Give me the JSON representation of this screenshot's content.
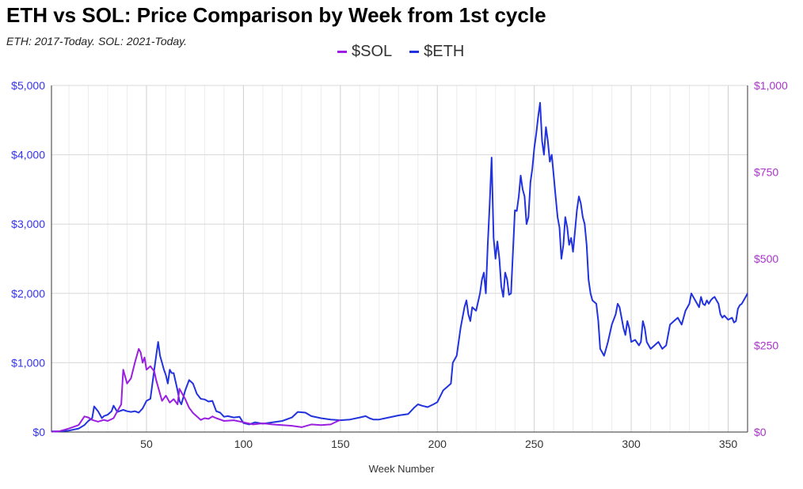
{
  "chart_data": {
    "type": "line",
    "title": "ETH vs SOL: Price Comparison by Week from 1st cycle",
    "subtitle": "ETH: 2017-Today. SOL: 2021-Today.",
    "xlabel": "Week Number",
    "xlim": [
      1,
      360
    ],
    "x_ticks": [
      50,
      100,
      150,
      200,
      250,
      300,
      350
    ],
    "y_left": {
      "lim": [
        0,
        5000
      ],
      "ticks": [
        "$0",
        "$1,000",
        "$2,000",
        "$3,000",
        "$4,000",
        "$5,000"
      ],
      "tick_values": [
        0,
        1000,
        2000,
        3000,
        4000,
        5000
      ],
      "color": "#3333ee"
    },
    "y_right": {
      "lim": [
        0,
        1000
      ],
      "ticks": [
        "$0",
        "$250",
        "$500",
        "$750",
        "$1,000"
      ],
      "tick_values": [
        0,
        250,
        500,
        750,
        1000
      ],
      "color": "#aa33cc"
    },
    "legend": "top-center",
    "grid": true,
    "series": [
      {
        "name": "$SOL",
        "axis": "right",
        "color": "#9b1fe0",
        "points": [
          [
            1,
            1
          ],
          [
            5,
            2
          ],
          [
            10,
            10
          ],
          [
            15,
            20
          ],
          [
            18,
            45
          ],
          [
            20,
            42
          ],
          [
            22,
            35
          ],
          [
            25,
            30
          ],
          [
            28,
            35
          ],
          [
            30,
            32
          ],
          [
            33,
            40
          ],
          [
            35,
            60
          ],
          [
            37,
            80
          ],
          [
            38,
            180
          ],
          [
            40,
            140
          ],
          [
            42,
            155
          ],
          [
            44,
            200
          ],
          [
            46,
            240
          ],
          [
            47,
            230
          ],
          [
            48,
            200
          ],
          [
            49,
            215
          ],
          [
            50,
            180
          ],
          [
            52,
            190
          ],
          [
            54,
            175
          ],
          [
            55,
            150
          ],
          [
            57,
            110
          ],
          [
            58,
            90
          ],
          [
            60,
            105
          ],
          [
            62,
            85
          ],
          [
            64,
            95
          ],
          [
            66,
            80
          ],
          [
            67,
            125
          ],
          [
            68,
            115
          ],
          [
            70,
            95
          ],
          [
            72,
            70
          ],
          [
            74,
            55
          ],
          [
            76,
            45
          ],
          [
            78,
            35
          ],
          [
            80,
            40
          ],
          [
            82,
            38
          ],
          [
            84,
            45
          ],
          [
            86,
            40
          ],
          [
            88,
            36
          ],
          [
            90,
            32
          ],
          [
            95,
            34
          ],
          [
            100,
            28
          ],
          [
            105,
            22
          ],
          [
            110,
            25
          ],
          [
            115,
            22
          ],
          [
            120,
            20
          ],
          [
            125,
            18
          ],
          [
            130,
            14
          ],
          [
            135,
            22
          ],
          [
            140,
            20
          ],
          [
            145,
            22
          ],
          [
            148,
            30
          ],
          [
            150,
            35
          ]
        ]
      },
      {
        "name": "$ETH",
        "axis": "left",
        "color": "#2233dd",
        "points": [
          [
            1,
            10
          ],
          [
            5,
            10
          ],
          [
            10,
            20
          ],
          [
            15,
            50
          ],
          [
            18,
            100
          ],
          [
            20,
            160
          ],
          [
            22,
            200
          ],
          [
            23,
            370
          ],
          [
            25,
            300
          ],
          [
            27,
            200
          ],
          [
            28,
            230
          ],
          [
            30,
            250
          ],
          [
            32,
            300
          ],
          [
            33,
            380
          ],
          [
            35,
            290
          ],
          [
            38,
            320
          ],
          [
            40,
            300
          ],
          [
            42,
            290
          ],
          [
            44,
            300
          ],
          [
            46,
            280
          ],
          [
            48,
            340
          ],
          [
            50,
            450
          ],
          [
            52,
            480
          ],
          [
            54,
            900
          ],
          [
            55,
            1100
          ],
          [
            56,
            1300
          ],
          [
            57,
            1100
          ],
          [
            58,
            1000
          ],
          [
            59,
            900
          ],
          [
            60,
            820
          ],
          [
            61,
            700
          ],
          [
            62,
            900
          ],
          [
            63,
            850
          ],
          [
            64,
            850
          ],
          [
            66,
            600
          ],
          [
            67,
            450
          ],
          [
            68,
            400
          ],
          [
            70,
            600
          ],
          [
            72,
            750
          ],
          [
            74,
            700
          ],
          [
            76,
            550
          ],
          [
            78,
            480
          ],
          [
            80,
            470
          ],
          [
            82,
            440
          ],
          [
            84,
            450
          ],
          [
            86,
            300
          ],
          [
            88,
            280
          ],
          [
            90,
            220
          ],
          [
            92,
            230
          ],
          [
            95,
            210
          ],
          [
            98,
            220
          ],
          [
            100,
            130
          ],
          [
            103,
            110
          ],
          [
            106,
            140
          ],
          [
            110,
            120
          ],
          [
            115,
            140
          ],
          [
            120,
            160
          ],
          [
            125,
            210
          ],
          [
            128,
            290
          ],
          [
            132,
            280
          ],
          [
            135,
            230
          ],
          [
            140,
            200
          ],
          [
            145,
            180
          ],
          [
            150,
            170
          ],
          [
            155,
            180
          ],
          [
            160,
            210
          ],
          [
            163,
            230
          ],
          [
            165,
            200
          ],
          [
            167,
            180
          ],
          [
            170,
            180
          ],
          [
            175,
            210
          ],
          [
            180,
            240
          ],
          [
            185,
            260
          ],
          [
            188,
            350
          ],
          [
            190,
            400
          ],
          [
            192,
            380
          ],
          [
            195,
            360
          ],
          [
            198,
            400
          ],
          [
            200,
            430
          ],
          [
            203,
            600
          ],
          [
            205,
            650
          ],
          [
            207,
            700
          ],
          [
            208,
            1000
          ],
          [
            210,
            1100
          ],
          [
            212,
            1500
          ],
          [
            214,
            1800
          ],
          [
            215,
            1900
          ],
          [
            216,
            1700
          ],
          [
            217,
            1600
          ],
          [
            218,
            1800
          ],
          [
            220,
            1750
          ],
          [
            222,
            2000
          ],
          [
            223,
            2200
          ],
          [
            224,
            2300
          ],
          [
            225,
            2000
          ],
          [
            226,
            2700
          ],
          [
            227,
            3300
          ],
          [
            228,
            3960
          ],
          [
            229,
            2800
          ],
          [
            230,
            2500
          ],
          [
            231,
            2750
          ],
          [
            232,
            2500
          ],
          [
            233,
            2100
          ],
          [
            234,
            1950
          ],
          [
            235,
            2300
          ],
          [
            236,
            2200
          ],
          [
            237,
            1980
          ],
          [
            238,
            2000
          ],
          [
            240,
            3200
          ],
          [
            241,
            3190
          ],
          [
            242,
            3400
          ],
          [
            243,
            3700
          ],
          [
            244,
            3500
          ],
          [
            245,
            3400
          ],
          [
            246,
            3000
          ],
          [
            247,
            3100
          ],
          [
            248,
            3600
          ],
          [
            249,
            3800
          ],
          [
            250,
            4100
          ],
          [
            251,
            4300
          ],
          [
            252,
            4550
          ],
          [
            253,
            4750
          ],
          [
            254,
            4200
          ],
          [
            255,
            4000
          ],
          [
            256,
            4400
          ],
          [
            257,
            4200
          ],
          [
            258,
            3900
          ],
          [
            259,
            4000
          ],
          [
            260,
            3700
          ],
          [
            261,
            3400
          ],
          [
            262,
            3100
          ],
          [
            263,
            2950
          ],
          [
            264,
            2500
          ],
          [
            265,
            2700
          ],
          [
            266,
            3100
          ],
          [
            267,
            2950
          ],
          [
            268,
            2700
          ],
          [
            269,
            2800
          ],
          [
            270,
            2600
          ],
          [
            271,
            2900
          ],
          [
            272,
            3200
          ],
          [
            273,
            3400
          ],
          [
            274,
            3300
          ],
          [
            275,
            3100
          ],
          [
            276,
            3000
          ],
          [
            277,
            2700
          ],
          [
            278,
            2200
          ],
          [
            279,
            2000
          ],
          [
            280,
            1900
          ],
          [
            282,
            1850
          ],
          [
            283,
            1600
          ],
          [
            284,
            1200
          ],
          [
            285,
            1150
          ],
          [
            286,
            1100
          ],
          [
            287,
            1200
          ],
          [
            288,
            1300
          ],
          [
            290,
            1550
          ],
          [
            292,
            1700
          ],
          [
            293,
            1850
          ],
          [
            294,
            1800
          ],
          [
            296,
            1500
          ],
          [
            297,
            1400
          ],
          [
            298,
            1600
          ],
          [
            299,
            1500
          ],
          [
            300,
            1300
          ],
          [
            302,
            1330
          ],
          [
            304,
            1250
          ],
          [
            305,
            1300
          ],
          [
            306,
            1600
          ],
          [
            307,
            1500
          ],
          [
            308,
            1300
          ],
          [
            310,
            1200
          ],
          [
            312,
            1250
          ],
          [
            314,
            1300
          ],
          [
            316,
            1200
          ],
          [
            318,
            1250
          ],
          [
            320,
            1550
          ],
          [
            322,
            1600
          ],
          [
            324,
            1650
          ],
          [
            326,
            1550
          ],
          [
            327,
            1650
          ],
          [
            328,
            1750
          ],
          [
            329,
            1800
          ],
          [
            330,
            1850
          ],
          [
            331,
            2000
          ],
          [
            332,
            1950
          ],
          [
            333,
            1900
          ],
          [
            334,
            1850
          ],
          [
            335,
            1800
          ],
          [
            336,
            1950
          ],
          [
            337,
            1850
          ],
          [
            338,
            1830
          ],
          [
            339,
            1900
          ],
          [
            340,
            1850
          ],
          [
            341,
            1900
          ],
          [
            342,
            1930
          ],
          [
            343,
            1950
          ],
          [
            344,
            1900
          ],
          [
            345,
            1850
          ],
          [
            346,
            1700
          ],
          [
            347,
            1650
          ],
          [
            348,
            1680
          ],
          [
            350,
            1620
          ],
          [
            352,
            1650
          ],
          [
            353,
            1580
          ],
          [
            354,
            1600
          ],
          [
            355,
            1780
          ],
          [
            356,
            1830
          ],
          [
            357,
            1850
          ],
          [
            358,
            1900
          ],
          [
            359,
            1950
          ],
          [
            360,
            2000
          ]
        ]
      }
    ]
  }
}
